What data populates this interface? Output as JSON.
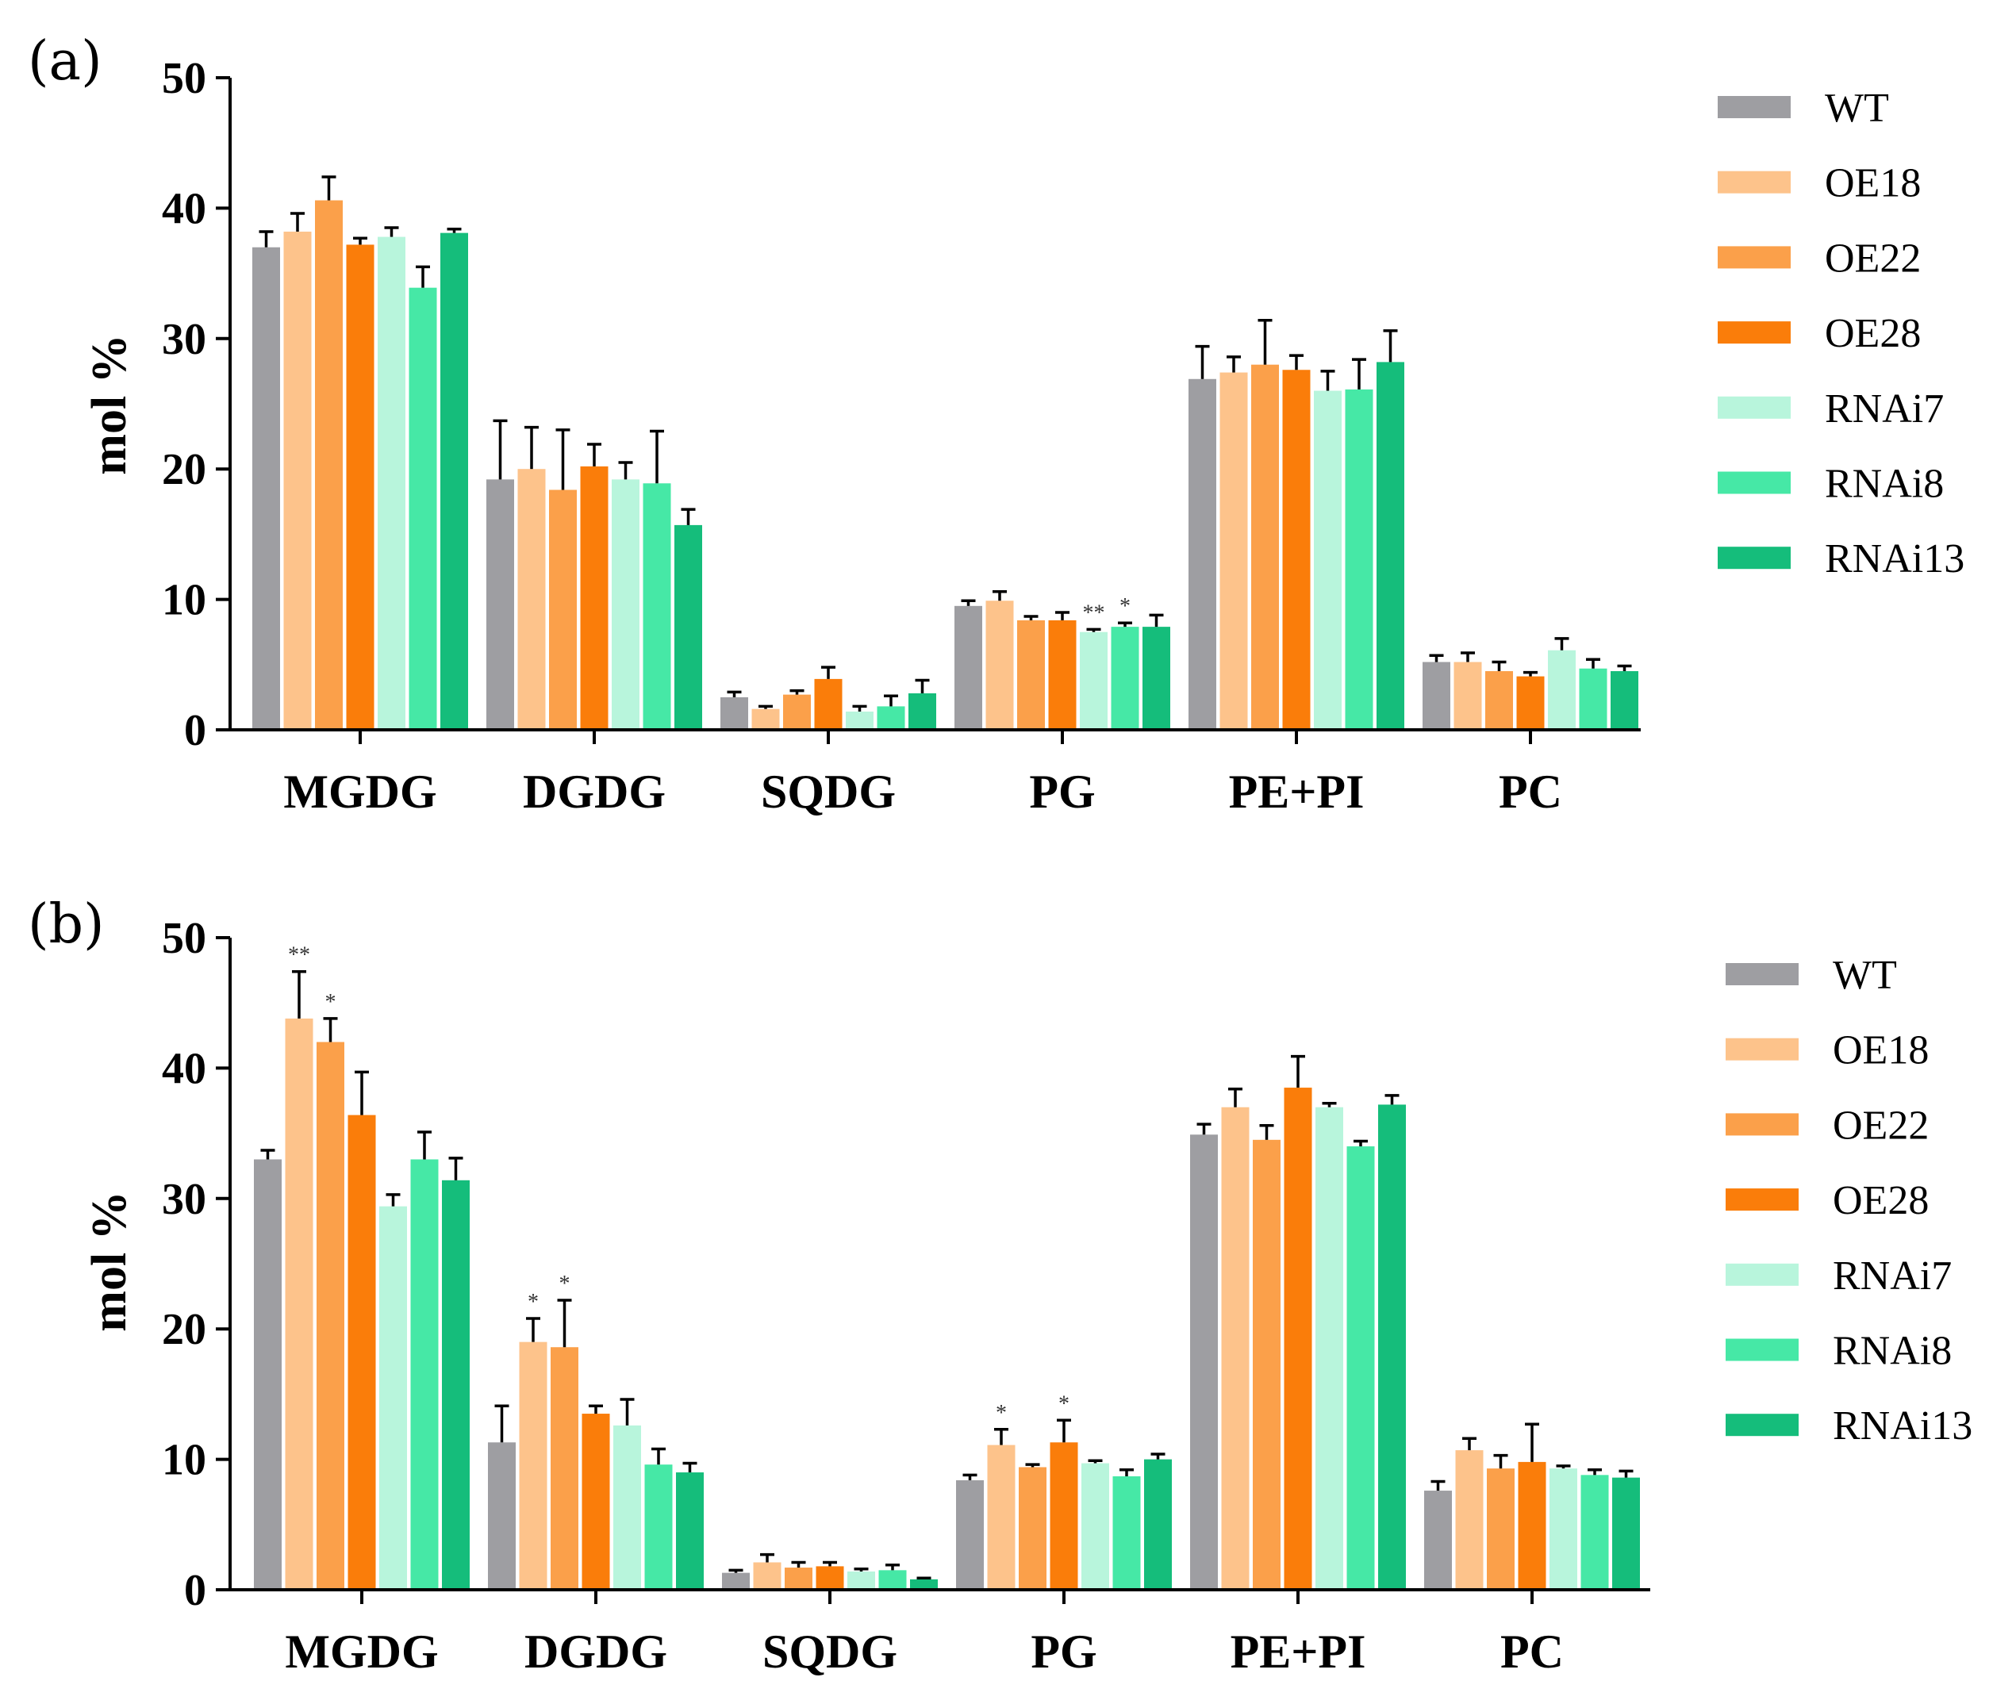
{
  "chart_data": [
    {
      "type": "bar",
      "panel_label": "(a)",
      "ylabel": "mol %",
      "xlabel": "",
      "ylim": [
        0,
        50
      ],
      "yticks": [
        "0",
        "10",
        "20",
        "30",
        "40",
        "50"
      ],
      "legend_position": "right",
      "categories": [
        "MGDG",
        "DGDG",
        "SQDG",
        "PG",
        "PE+PI",
        "PC"
      ],
      "series": [
        {
          "name": "WT",
          "color": "#9e9ea2",
          "values": [
            37.0,
            19.2,
            2.5,
            9.5,
            26.9,
            5.2
          ],
          "errors": [
            1.2,
            4.5,
            0.4,
            0.4,
            2.5,
            0.5
          ]
        },
        {
          "name": "OE18",
          "color": "#fdc38b",
          "values": [
            38.2,
            20.0,
            1.6,
            9.9,
            27.4,
            5.2
          ],
          "errors": [
            1.4,
            3.2,
            0.2,
            0.7,
            1.2,
            0.7
          ]
        },
        {
          "name": "OE22",
          "color": "#fba04a",
          "values": [
            40.6,
            18.4,
            2.7,
            8.4,
            28.0,
            4.5
          ],
          "errors": [
            1.8,
            4.6,
            0.3,
            0.3,
            3.4,
            0.7
          ]
        },
        {
          "name": "OE28",
          "color": "#fa7d0a",
          "values": [
            37.2,
            20.2,
            3.9,
            8.4,
            27.6,
            4.1
          ],
          "errors": [
            0.5,
            1.7,
            0.9,
            0.6,
            1.1,
            0.3
          ]
        },
        {
          "name": "RNAi7",
          "color": "#b8f5dc",
          "values": [
            37.8,
            19.2,
            1.4,
            7.5,
            26.0,
            6.1
          ],
          "errors": [
            0.7,
            1.3,
            0.4,
            0.2,
            1.5,
            0.9
          ]
        },
        {
          "name": "RNAi8",
          "color": "#46e8a6",
          "values": [
            33.9,
            18.9,
            1.8,
            7.9,
            26.1,
            4.7
          ],
          "errors": [
            1.6,
            4.0,
            0.8,
            0.3,
            2.3,
            0.7
          ]
        },
        {
          "name": "RNAi13",
          "color": "#15bd7b",
          "values": [
            38.1,
            15.7,
            2.8,
            7.9,
            28.2,
            4.5
          ],
          "errors": [
            0.3,
            1.2,
            1.0,
            0.9,
            2.4,
            0.4
          ]
        }
      ],
      "annotations": [
        {
          "category": "PG",
          "series": "RNAi7",
          "text": "**"
        },
        {
          "category": "PG",
          "series": "RNAi8",
          "text": "*"
        }
      ]
    },
    {
      "type": "bar",
      "panel_label": "(b)",
      "ylabel": "mol %",
      "xlabel": "",
      "ylim": [
        0,
        50
      ],
      "yticks": [
        "0",
        "10",
        "20",
        "30",
        "40",
        "50"
      ],
      "legend_position": "right",
      "categories": [
        "MGDG",
        "DGDG",
        "SQDG",
        "PG",
        "PE+PI",
        "PC"
      ],
      "series": [
        {
          "name": "WT",
          "color": "#9e9ea2",
          "values": [
            33.0,
            11.3,
            1.3,
            8.4,
            34.9,
            7.6
          ],
          "errors": [
            0.7,
            2.8,
            0.2,
            0.4,
            0.8,
            0.7
          ]
        },
        {
          "name": "OE18",
          "color": "#fdc38b",
          "values": [
            43.8,
            19.0,
            2.1,
            11.1,
            37.0,
            10.7
          ],
          "errors": [
            3.6,
            1.8,
            0.6,
            1.2,
            1.4,
            0.9
          ]
        },
        {
          "name": "OE22",
          "color": "#fba04a",
          "values": [
            42.0,
            18.6,
            1.7,
            9.4,
            34.5,
            9.3
          ],
          "errors": [
            1.8,
            3.6,
            0.4,
            0.2,
            1.1,
            1.0
          ]
        },
        {
          "name": "OE28",
          "color": "#fa7d0a",
          "values": [
            36.4,
            13.5,
            1.8,
            11.3,
            38.5,
            9.8
          ],
          "errors": [
            3.3,
            0.6,
            0.3,
            1.7,
            2.4,
            2.9
          ]
        },
        {
          "name": "RNAi7",
          "color": "#b8f5dc",
          "values": [
            29.4,
            12.6,
            1.4,
            9.7,
            37.0,
            9.3
          ],
          "errors": [
            0.9,
            2.0,
            0.2,
            0.2,
            0.3,
            0.2
          ]
        },
        {
          "name": "RNAi8",
          "color": "#46e8a6",
          "values": [
            33.0,
            9.6,
            1.5,
            8.7,
            34.0,
            8.8
          ],
          "errors": [
            2.1,
            1.2,
            0.4,
            0.5,
            0.4,
            0.4
          ]
        },
        {
          "name": "RNAi13",
          "color": "#15bd7b",
          "values": [
            31.4,
            9.0,
            0.8,
            10.0,
            37.2,
            8.6
          ],
          "errors": [
            1.7,
            0.7,
            0.1,
            0.4,
            0.7,
            0.5
          ]
        }
      ],
      "annotations": [
        {
          "category": "MGDG",
          "series": "OE18",
          "text": "**"
        },
        {
          "category": "MGDG",
          "series": "OE22",
          "text": "*"
        },
        {
          "category": "DGDG",
          "series": "OE18",
          "text": "*"
        },
        {
          "category": "DGDG",
          "series": "OE22",
          "text": "*"
        },
        {
          "category": "PG",
          "series": "OE18",
          "text": "*"
        },
        {
          "category": "PG",
          "series": "OE28",
          "text": "*"
        }
      ]
    }
  ]
}
